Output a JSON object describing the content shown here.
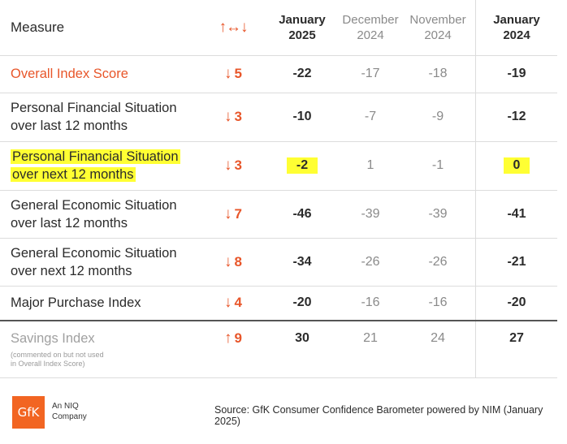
{
  "header": {
    "measure": "Measure",
    "change_icon": "↑↔↓",
    "col_jan2025": [
      "January",
      "2025"
    ],
    "col_dec2024": [
      "December",
      "2024"
    ],
    "col_nov2024": [
      "November",
      "2024"
    ],
    "col_jan2024": [
      "January",
      "2024"
    ]
  },
  "rows": [
    {
      "measure": [
        "Overall Index Score"
      ],
      "change_dir": "↓",
      "change": "5",
      "jan2025": "-22",
      "dec2024": "-17",
      "nov2024": "-18",
      "jan2024": "-19"
    },
    {
      "measure": [
        "Personal Financial Situation",
        "over last 12 months"
      ],
      "change_dir": "↓",
      "change": "3",
      "jan2025": "-10",
      "dec2024": "-7",
      "nov2024": "-9",
      "jan2024": "-12"
    },
    {
      "measure": [
        "Personal Financial Situation",
        "over next 12 months"
      ],
      "change_dir": "↓",
      "change": "3",
      "jan2025": "-2",
      "dec2024": "1",
      "nov2024": "-1",
      "jan2024": "0"
    },
    {
      "measure": [
        "General Economic Situation",
        "over last 12 months"
      ],
      "change_dir": "↓",
      "change": "7",
      "jan2025": "-46",
      "dec2024": "-39",
      "nov2024": "-39",
      "jan2024": "-41"
    },
    {
      "measure": [
        "General Economic Situation",
        "over next 12 months"
      ],
      "change_dir": "↓",
      "change": "8",
      "jan2025": "-34",
      "dec2024": "-26",
      "nov2024": "-26",
      "jan2024": "-21"
    },
    {
      "measure": [
        "Major Purchase Index"
      ],
      "change_dir": "↓",
      "change": "4",
      "jan2025": "-20",
      "dec2024": "-16",
      "nov2024": "-16",
      "jan2024": "-20"
    },
    {
      "measure": [
        "Savings Index"
      ],
      "note": [
        "(commented on but not used",
        "in Overall Index Score)"
      ],
      "change_dir": "↑",
      "change": "9",
      "jan2025": "30",
      "dec2024": "21",
      "nov2024": "24",
      "jan2024": "27"
    }
  ],
  "footer": {
    "logo": "GfK",
    "logo_caption": [
      "An NIQ",
      "Company"
    ],
    "source": "Source: GfK Consumer Confidence Barometer powered by NIM (January 2025)"
  },
  "colors": {
    "accent_orange": "#e8562a",
    "highlight_yellow": "#ffff33",
    "muted_gray": "#8a8a8a"
  }
}
